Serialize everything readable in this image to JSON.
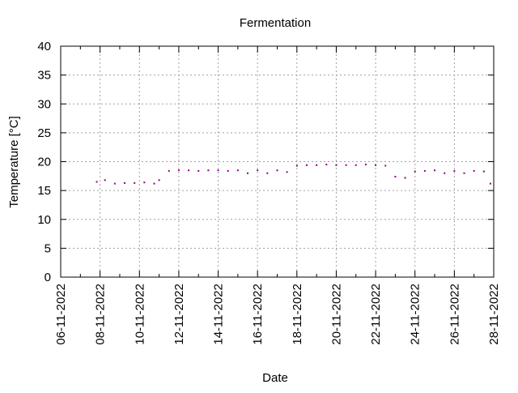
{
  "chart_data": {
    "type": "scatter",
    "title": "Fermentation",
    "xlabel": "Date",
    "ylabel": "Temperature [°C]",
    "xlim": [
      "06-11-2022",
      "28-11-2022"
    ],
    "ylim": [
      0,
      40
    ],
    "x_ticks": [
      "06-11-2022",
      "08-11-2022",
      "10-11-2022",
      "12-11-2022",
      "14-11-2022",
      "16-11-2022",
      "18-11-2022",
      "20-11-2022",
      "22-11-2022",
      "24-11-2022",
      "26-11-2022",
      "28-11-2022"
    ],
    "y_ticks": [
      "0",
      "5",
      "10",
      "15",
      "20",
      "25",
      "30",
      "35",
      "40"
    ],
    "grid": true,
    "point_color": "#8b008b",
    "series": [
      {
        "x": [
          "07-11-2022 20:00",
          "08-11-2022 06:00",
          "08-11-2022 18:00",
          "09-11-2022 06:00",
          "09-11-2022 18:00",
          "10-11-2022 06:00",
          "10-11-2022 18:00",
          "11-11-2022 00:00",
          "11-11-2022 12:00",
          "12-11-2022 00:00",
          "12-11-2022 12:00",
          "13-11-2022 00:00",
          "13-11-2022 12:00",
          "14-11-2022 00:00",
          "14-11-2022 12:00",
          "15-11-2022 00:00",
          "15-11-2022 12:00",
          "16-11-2022 00:00",
          "16-11-2022 12:00",
          "17-11-2022 00:00",
          "17-11-2022 12:00",
          "18-11-2022 00:00",
          "18-11-2022 12:00",
          "19-11-2022 00:00",
          "19-11-2022 12:00",
          "20-11-2022 00:00",
          "20-11-2022 12:00",
          "21-11-2022 00:00",
          "21-11-2022 12:00",
          "22-11-2022 00:00",
          "22-11-2022 12:00",
          "23-11-2022 00:00",
          "23-11-2022 12:00",
          "24-11-2022 00:00",
          "24-11-2022 12:00",
          "25-11-2022 00:00",
          "25-11-2022 12:00",
          "26-11-2022 00:00",
          "26-11-2022 12:00",
          "27-11-2022 00:00",
          "27-11-2022 12:00",
          "27-11-2022 20:00"
        ],
        "y": [
          16.5,
          16.8,
          16.2,
          16.3,
          16.3,
          16.4,
          16.2,
          16.8,
          18.4,
          18.5,
          18.5,
          18.4,
          18.5,
          18.5,
          18.4,
          18.5,
          18.0,
          18.5,
          18.0,
          18.5,
          18.2,
          19.3,
          19.4,
          19.4,
          19.5,
          19.4,
          19.4,
          19.4,
          19.5,
          19.4,
          19.3,
          17.4,
          17.2,
          18.3,
          18.4,
          18.5,
          18.0,
          18.4,
          18.0,
          18.4,
          18.3,
          16.2
        ]
      }
    ]
  }
}
